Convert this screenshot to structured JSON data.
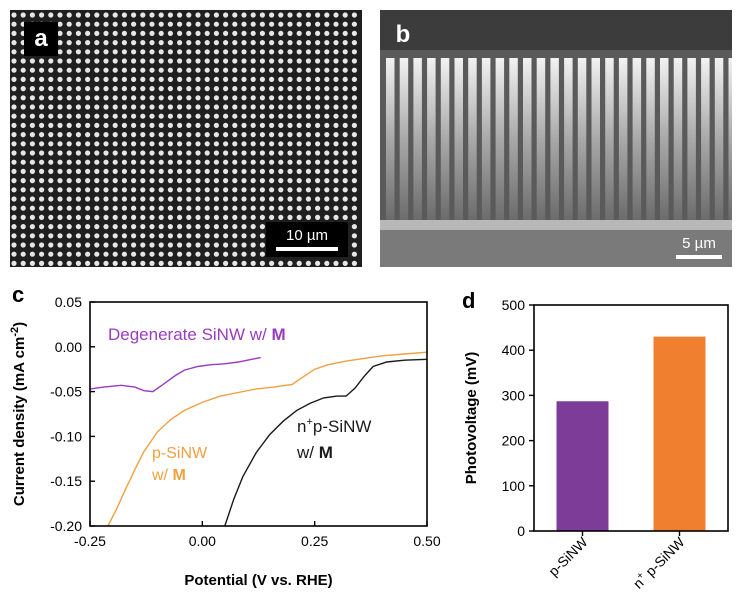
{
  "panel_a": {
    "label": "a",
    "scale_bar": "10 µm",
    "image_description_icon": "sem-nanowire-array-topview-icon"
  },
  "panel_b": {
    "label": "b",
    "scale_bar": "5 µm",
    "image_description_icon": "sem-nanowire-array-crosssection-icon"
  },
  "chart_data": [
    {
      "id": "c",
      "label": "c",
      "type": "line",
      "xlabel": "Potential (V vs. RHE)",
      "ylabel_main": "Current density (mA cm",
      "ylabel_sup": "-2",
      "ylabel_end": ")",
      "xlim": [
        -0.25,
        0.5
      ],
      "ylim": [
        -0.2,
        0.05
      ],
      "xticks": [
        -0.25,
        0.0,
        0.25,
        0.5
      ],
      "xtick_labels": [
        "-0.25",
        "0.00",
        "0.25",
        "0.50"
      ],
      "yticks": [
        0.05,
        0.0,
        -0.05,
        -0.1,
        -0.15,
        -0.2
      ],
      "ytick_labels": [
        "0.05",
        "0.00",
        "-0.05",
        "-0.10",
        "-0.15",
        "-0.20"
      ],
      "series": [
        {
          "name": "Degenerate SiNW w/ M",
          "color": "#9b3bbf",
          "points": [
            [
              -0.25,
              -0.047
            ],
            [
              -0.22,
              -0.045
            ],
            [
              -0.18,
              -0.043
            ],
            [
              -0.15,
              -0.045
            ],
            [
              -0.13,
              -0.049
            ],
            [
              -0.11,
              -0.05
            ],
            [
              -0.09,
              -0.043
            ],
            [
              -0.06,
              -0.032
            ],
            [
              -0.04,
              -0.026
            ],
            [
              -0.01,
              -0.022
            ],
            [
              0.02,
              -0.02
            ],
            [
              0.05,
              -0.019
            ],
            [
              0.08,
              -0.017
            ],
            [
              0.11,
              -0.014
            ],
            [
              0.13,
              -0.012
            ]
          ]
        },
        {
          "name": "p-SiNW w/ M",
          "color": "#f0a040",
          "points": [
            [
              -0.21,
              -0.2
            ],
            [
              -0.19,
              -0.18
            ],
            [
              -0.17,
              -0.158
            ],
            [
              -0.15,
              -0.137
            ],
            [
              -0.13,
              -0.117
            ],
            [
              -0.1,
              -0.095
            ],
            [
              -0.07,
              -0.081
            ],
            [
              -0.04,
              -0.071
            ],
            [
              0.0,
              -0.062
            ],
            [
              0.04,
              -0.055
            ],
            [
              0.08,
              -0.051
            ],
            [
              0.12,
              -0.047
            ],
            [
              0.16,
              -0.045
            ],
            [
              0.2,
              -0.042
            ],
            [
              0.22,
              -0.035
            ],
            [
              0.25,
              -0.025
            ],
            [
              0.28,
              -0.02
            ],
            [
              0.32,
              -0.016
            ],
            [
              0.36,
              -0.013
            ],
            [
              0.4,
              -0.01
            ],
            [
              0.45,
              -0.008
            ],
            [
              0.5,
              -0.006
            ]
          ]
        },
        {
          "name": "n⁺p-SiNW w/ M",
          "color": "#1a1a1a",
          "points": [
            [
              0.05,
              -0.2
            ],
            [
              0.07,
              -0.17
            ],
            [
              0.09,
              -0.145
            ],
            [
              0.12,
              -0.118
            ],
            [
              0.15,
              -0.098
            ],
            [
              0.18,
              -0.083
            ],
            [
              0.21,
              -0.071
            ],
            [
              0.24,
              -0.063
            ],
            [
              0.27,
              -0.057
            ],
            [
              0.3,
              -0.055
            ],
            [
              0.32,
              -0.055
            ],
            [
              0.34,
              -0.046
            ],
            [
              0.36,
              -0.033
            ],
            [
              0.38,
              -0.022
            ],
            [
              0.41,
              -0.017
            ],
            [
              0.45,
              -0.015
            ],
            [
              0.5,
              -0.014
            ]
          ]
        }
      ],
      "annotations": {
        "degenerate": {
          "text_main": "Degenerate SiNW w/ ",
          "text_bold": "M",
          "color": "#9b3bbf"
        },
        "p": {
          "line1": "p-SiNW",
          "line2_main": "w/ ",
          "line2_bold": "M",
          "color": "#f0a040"
        },
        "np": {
          "line1_pre": "n",
          "line1_sup": "+",
          "line1_post": "p-SiNW",
          "line2_main": "w/ ",
          "line2_bold": "M",
          "color": "#1a1a1a"
        }
      }
    },
    {
      "id": "d",
      "label": "d",
      "type": "bar",
      "ylabel": "Photovoltage (mV)",
      "ylim": [
        0,
        500
      ],
      "yticks": [
        0,
        100,
        200,
        300,
        400,
        500
      ],
      "ytick_labels": [
        "0",
        "100",
        "200",
        "300",
        "400",
        "500"
      ],
      "categories": [
        "p-SiNW",
        "n⁺p-SiNW"
      ],
      "category_parts": [
        {
          "pre": "p-SiNW",
          "sup": "",
          "post": ""
        },
        {
          "pre": "n",
          "sup": "+",
          "post": " p-SiNW"
        }
      ],
      "values": [
        287,
        430
      ],
      "colors": [
        "#7d3c98",
        "#f08030"
      ]
    }
  ]
}
